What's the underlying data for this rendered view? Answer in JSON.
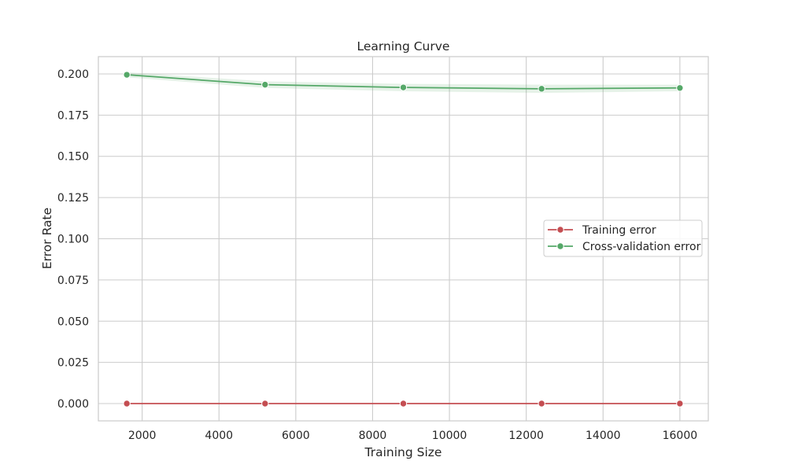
{
  "chart_data": {
    "type": "line",
    "title": "Learning Curve",
    "xlabel": "Training Size",
    "ylabel": "Error Rate",
    "xlim": [
      860,
      16740
    ],
    "ylim": [
      -0.0105,
      0.2105
    ],
    "xticks": [
      2000,
      4000,
      6000,
      8000,
      10000,
      12000,
      14000,
      16000
    ],
    "xtick_labels": [
      "2000",
      "4000",
      "6000",
      "8000",
      "10000",
      "12000",
      "14000",
      "16000"
    ],
    "yticks": [
      0.0,
      0.025,
      0.05,
      0.075,
      0.1,
      0.125,
      0.15,
      0.175,
      0.2
    ],
    "ytick_labels": [
      "0.000",
      "0.025",
      "0.050",
      "0.075",
      "0.100",
      "0.125",
      "0.150",
      "0.175",
      "0.200"
    ],
    "grid": true,
    "legend_position": "center-right",
    "x": [
      1600,
      5200,
      8800,
      12400,
      16000
    ],
    "series": [
      {
        "name": "Training error",
        "color": "#c44e52",
        "values": [
          0.0,
          0.0,
          0.0,
          0.0,
          0.0
        ],
        "band_lower": [
          0.0,
          0.0,
          0.0,
          0.0,
          0.0
        ],
        "band_upper": [
          0.0,
          0.0,
          0.0,
          0.0,
          0.0
        ]
      },
      {
        "name": "Cross-validation error",
        "color": "#55a868",
        "values": [
          0.1995,
          0.1935,
          0.1918,
          0.191,
          0.1915
        ],
        "band_lower": [
          0.198,
          0.1915,
          0.1895,
          0.1885,
          0.1895
        ],
        "band_upper": [
          0.201,
          0.1955,
          0.194,
          0.1935,
          0.1935
        ]
      }
    ]
  }
}
